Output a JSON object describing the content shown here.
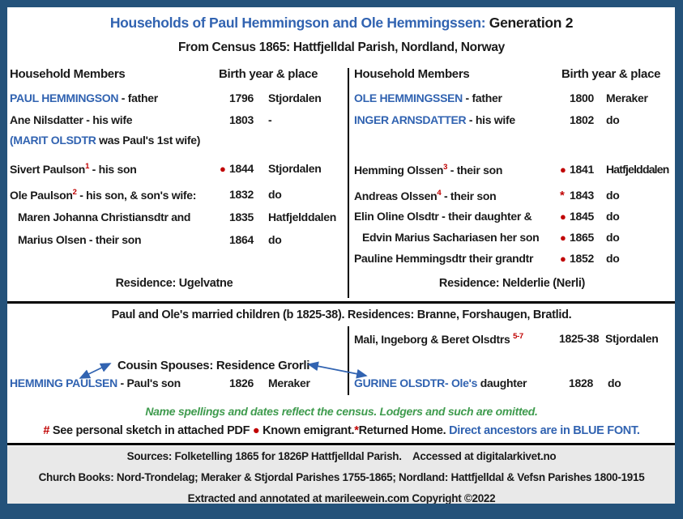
{
  "colors": {
    "border_navy": "#24527a",
    "ancestor_blue": "#3163b1",
    "marker_red": "#c00000",
    "note_green": "#3f9b4e",
    "footer_gray": "#e9e9e9"
  },
  "header": {
    "title_blue": "Households of Paul Hemmingson and Ole Hemmingssen: ",
    "title_black": "Generation 2",
    "subtitle": "From Census 1865: Hattfjelldal Parish, Nordland, Norway"
  },
  "left_household": {
    "members_header": "Household Members",
    "birth_header": "Birth year & place",
    "rows": [
      {
        "segments": [
          {
            "t": "PAUL HEMMINGSON",
            "c": "b"
          },
          {
            "t": " - father",
            "c": "k"
          }
        ],
        "marker": "",
        "year": "1796",
        "place": "Stjordalen"
      },
      {
        "segments": [
          {
            "t": "Ane Nilsdatter - his wife",
            "c": "k"
          }
        ],
        "marker": "",
        "year": "1803",
        "place": "-"
      },
      {
        "segments": [
          {
            "t": "(MARIT OLSDTR",
            "c": "b"
          },
          {
            "t": " was Paul's 1st wife)",
            "c": "k"
          }
        ],
        "marker": "",
        "year": "",
        "place": ""
      },
      {
        "segments": [
          {
            "t": "Sivert Paulson",
            "c": "k"
          },
          {
            "t": "1",
            "c": "sup"
          },
          {
            "t": " - his son",
            "c": "k"
          }
        ],
        "marker": "●",
        "year": "1844",
        "place": "Stjordalen"
      },
      {
        "segments": [
          {
            "t": "Ole Paulson",
            "c": "k"
          },
          {
            "t": "2",
            "c": "sup"
          },
          {
            "t": " - his son, & son's wife:",
            "c": "k"
          }
        ],
        "marker": "",
        "year": "1832",
        "place": "do"
      },
      {
        "segments": [
          {
            "t": "Maren Johanna Christiansdtr and",
            "c": "k"
          }
        ],
        "marker": "",
        "year": "1835",
        "place": "Hatfjelddalen"
      },
      {
        "segments": [
          {
            "t": "Marius Olsen - their son",
            "c": "k"
          }
        ],
        "marker": "",
        "year": "1864",
        "place": "do"
      }
    ],
    "residence": "Residence: Ugelvatne"
  },
  "right_household": {
    "members_header": "Household Members",
    "birth_header": "Birth year & place",
    "rows": [
      {
        "segments": [
          {
            "t": "OLE HEMMINGSSEN",
            "c": "b"
          },
          {
            "t": " - father",
            "c": "k"
          }
        ],
        "marker": "",
        "year": "1800",
        "place": "Meraker"
      },
      {
        "segments": [
          {
            "t": "INGER ARNSDATTER",
            "c": "b"
          },
          {
            "t": " - his wife",
            "c": "k"
          }
        ],
        "marker": "",
        "year": "1802",
        "place": "do"
      },
      {
        "segments": [
          {
            "t": "Hemming Olssen",
            "c": "k"
          },
          {
            "t": "3",
            "c": "sup"
          },
          {
            "t": " - their son",
            "c": "k"
          }
        ],
        "marker": "●",
        "year": "1841",
        "place": "Hatfjelddalen"
      },
      {
        "segments": [
          {
            "t": "Andreas Olssen",
            "c": "k"
          },
          {
            "t": "4",
            "c": "sup"
          },
          {
            "t": " - their son",
            "c": "k"
          }
        ],
        "marker": "*",
        "year": "1843",
        "place": "do"
      },
      {
        "segments": [
          {
            "t": "Elin Oline Olsdtr - their daughter &",
            "c": "k"
          }
        ],
        "marker": "●",
        "year": "1845",
        "place": "do"
      },
      {
        "segments": [
          {
            "t": "Edvin Marius Sachariasen her son",
            "c": "k"
          }
        ],
        "marker": "●",
        "year": "1865",
        "place": "do"
      },
      {
        "segments": [
          {
            "t": "Pauline Hemmingsdtr their grandtr",
            "c": "k"
          }
        ],
        "marker": "●",
        "year": "1852",
        "place": "do"
      }
    ],
    "residence": "Residence: Nelderlie (Nerli)"
  },
  "married_section": {
    "heading": "Paul and Ole's married children (b 1825-38). Residences: Branne, Forshaugen, Bratlid.",
    "mali_row": {
      "segments": [
        {
          "t": "Mali, Ingeborg & Beret Olsdtrs ",
          "c": "k"
        },
        {
          "t": "5-7",
          "c": "sup"
        }
      ],
      "year": "1825-38",
      "place": "Stjordalen"
    },
    "cousin_label": "Cousin Spouses: Residence Grorli",
    "hemming_row": {
      "segments": [
        {
          "t": "HEMMING PAULSEN",
          "c": "b"
        },
        {
          "t": " - Paul's son",
          "c": "k"
        }
      ],
      "year": "1826",
      "place": "Meraker"
    },
    "gurine_row": {
      "segments": [
        {
          "t": "GURINE OLSDTR- Ole's",
          "c": "b"
        },
        {
          "t": " daughter",
          "c": "k"
        }
      ],
      "year": "1828",
      "place": "do"
    }
  },
  "notes": {
    "census_note": "Name spellings and dates reflect the census. Lodgers and such are omitted.",
    "legend_segments": [
      {
        "t": "# ",
        "c": "r"
      },
      {
        "t": "See personal sketch in attached PDF ",
        "c": "k"
      },
      {
        "t": "● ",
        "c": "r"
      },
      {
        "t": "Known emigrant.",
        "c": "k"
      },
      {
        "t": "*",
        "c": "r"
      },
      {
        "t": "Returned Home. ",
        "c": "k"
      },
      {
        "t": "Direct ancestors are in BLUE FONT.",
        "c": "b"
      }
    ]
  },
  "footer": {
    "line1": "Sources: Folketelling 1865 for 1826P Hattfjelldal Parish.    Accessed at digitalarkivet.no",
    "line2": "Church Books: Nord-Trondelag; Meraker & Stjordal Parishes 1755-1865; Nordland: Hattfjelldal & Vefsn Parishes 1800-1915",
    "line3": "Extracted and annotated at marileewein.com Copyright ©2022"
  }
}
